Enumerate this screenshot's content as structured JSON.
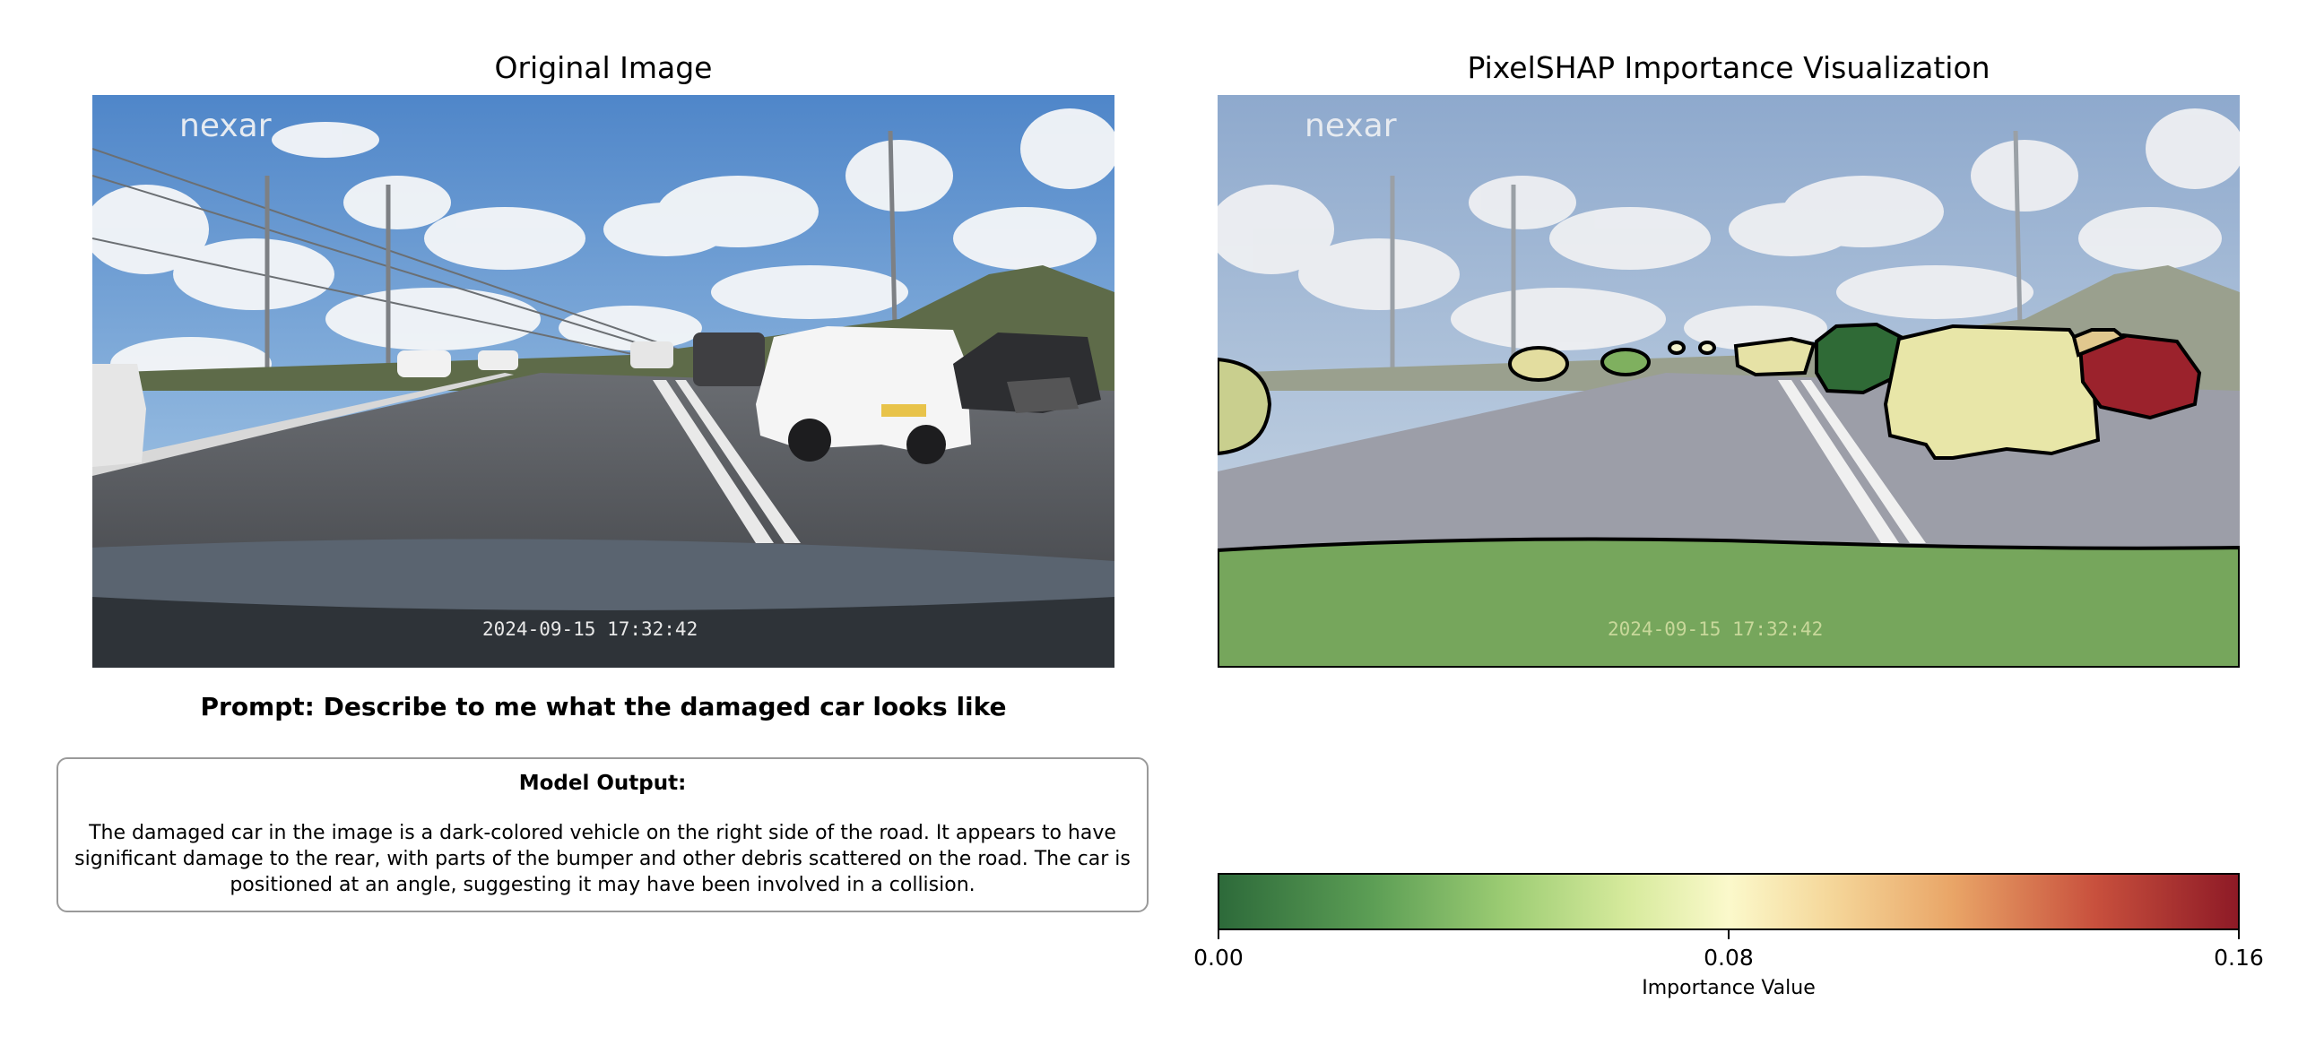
{
  "left_panel": {
    "title": "Original Image",
    "watermark": "nexar",
    "timestamp": "2024-09-15 17:32:42"
  },
  "right_panel": {
    "title": "PixelSHAP Importance Visualization",
    "watermark": "nexar",
    "timestamp": "2024-09-15 17:32:42"
  },
  "prompt": "Prompt: Describe to me what the damaged car looks like",
  "model_output": {
    "title": "Model Output:",
    "text": "The damaged car in the image is a dark-colored vehicle on the right side of the road. It appears to have significant damage to the rear, with parts of the bumper and other debris scattered on the road. The car is positioned at an angle, suggesting it may have been involved in a collision."
  },
  "colorbar": {
    "label": "Importance Value",
    "min": "0.00",
    "mid": "0.08",
    "max": "0.16",
    "colors": [
      "#2d6a3a",
      "#9ccc73",
      "#fbf9cb",
      "#e9a567",
      "#8e1a26"
    ]
  }
}
